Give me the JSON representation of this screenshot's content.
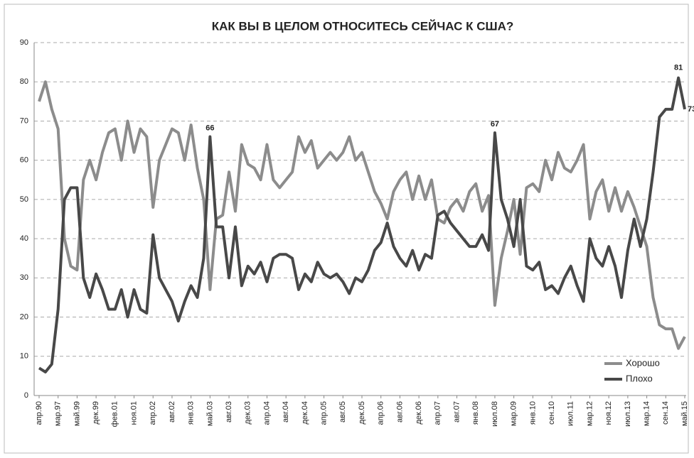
{
  "chart_data": {
    "type": "line",
    "title": "КАК ВЫ В ЦЕЛОМ ОТНОСИТЕСЬ СЕЙЧАС К США?",
    "categories": [
      "апр.90",
      null,
      null,
      "мар.97",
      null,
      null,
      "май.99",
      null,
      null,
      "дек.99",
      null,
      null,
      "фев.01",
      null,
      null,
      "ноя.01",
      null,
      null,
      "апр.02",
      null,
      null,
      "авг.02",
      null,
      null,
      "янв.03",
      null,
      null,
      "май.03",
      null,
      null,
      "авг.03",
      null,
      null,
      "дек.03",
      null,
      null,
      "апр.04",
      null,
      null,
      "авг.04",
      null,
      null,
      "дек.04",
      null,
      null,
      "апр.05",
      null,
      null,
      "авг.05",
      null,
      null,
      "дек.05",
      null,
      null,
      "апр.06",
      null,
      null,
      "авг.06",
      null,
      null,
      "дек.06",
      null,
      null,
      "апр.07",
      null,
      null,
      "авг.07",
      null,
      null,
      "янв.08",
      null,
      null,
      "июл.08",
      null,
      null,
      "мар.09",
      null,
      null,
      "янв.10",
      null,
      null,
      "сен.10",
      null,
      null,
      "июл.11",
      null,
      null,
      "мар.12",
      null,
      null,
      "ноя.12",
      null,
      null,
      "июл.13",
      null,
      null,
      "мар.14",
      null,
      null,
      "сен.14",
      null,
      null,
      "май.15"
    ],
    "series": [
      {
        "name": "Хорошо",
        "color": "#8c8c8c",
        "values": [
          75,
          80,
          73,
          68,
          40,
          33,
          32,
          55,
          60,
          55,
          62,
          67,
          68,
          60,
          70,
          62,
          68,
          66,
          48,
          60,
          64,
          68,
          67,
          60,
          69,
          58,
          50,
          27,
          45,
          46,
          57,
          47,
          64,
          59,
          58,
          55,
          64,
          55,
          53,
          55,
          57,
          66,
          62,
          65,
          58,
          60,
          62,
          60,
          62,
          66,
          60,
          62,
          57,
          52,
          49,
          45,
          52,
          55,
          57,
          50,
          56,
          50,
          55,
          45,
          44,
          48,
          50,
          47,
          52,
          54,
          47,
          51,
          23,
          35,
          42,
          50,
          36,
          53,
          54,
          52,
          60,
          55,
          62,
          58,
          57,
          60,
          64,
          45,
          52,
          55,
          47,
          53,
          47,
          52,
          48,
          43,
          38,
          25,
          18,
          17,
          17,
          12,
          15
        ]
      },
      {
        "name": "Плохо",
        "color": "#484848",
        "values": [
          7,
          6,
          8,
          22,
          50,
          53,
          53,
          30,
          25,
          31,
          27,
          22,
          22,
          27,
          20,
          27,
          22,
          21,
          41,
          30,
          27,
          24,
          19,
          24,
          28,
          25,
          35,
          66,
          43,
          43,
          30,
          43,
          28,
          33,
          31,
          34,
          29,
          35,
          36,
          36,
          35,
          27,
          31,
          29,
          34,
          31,
          30,
          31,
          29,
          26,
          30,
          29,
          32,
          37,
          39,
          44,
          38,
          35,
          33,
          37,
          32,
          36,
          35,
          46,
          47,
          44,
          42,
          40,
          38,
          38,
          41,
          37,
          67,
          50,
          45,
          38,
          50,
          33,
          32,
          34,
          27,
          28,
          26,
          30,
          33,
          28,
          24,
          40,
          35,
          33,
          38,
          33,
          25,
          37,
          45,
          38,
          45,
          57,
          71,
          73,
          73,
          81,
          73
        ]
      }
    ],
    "ylim": [
      0,
      90
    ],
    "yticks": [
      0,
      10,
      20,
      30,
      40,
      50,
      60,
      70,
      80,
      90
    ],
    "grid": true,
    "legend": "lower right"
  }
}
